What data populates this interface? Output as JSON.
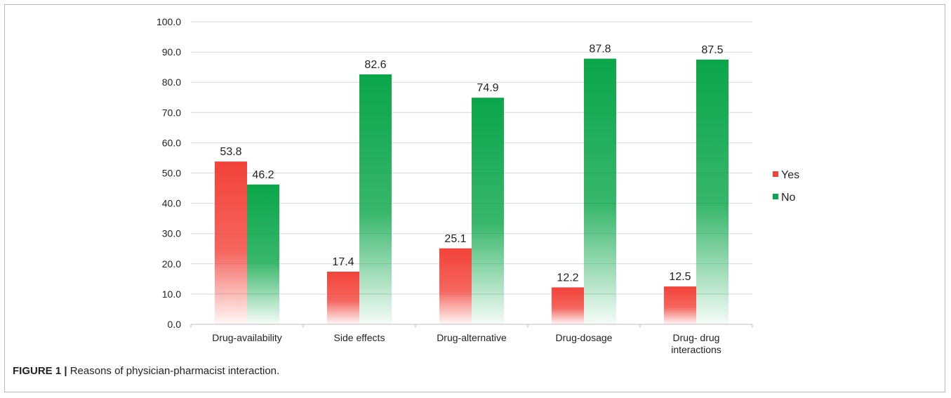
{
  "caption": {
    "label": "FIGURE 1 |",
    "text": "Reasons of physician-pharmacist interaction."
  },
  "chart_data": {
    "type": "bar",
    "categories": [
      [
        "Drug-availability"
      ],
      [
        "Side effects"
      ],
      [
        "Drug-alternative"
      ],
      [
        "Drug-dosage"
      ],
      [
        "Drug- drug",
        "interactions"
      ]
    ],
    "series": [
      {
        "name": "Yes",
        "values": [
          53.8,
          17.4,
          25.1,
          12.2,
          12.5
        ],
        "color": "#f2433a"
      },
      {
        "name": "No",
        "values": [
          46.2,
          82.6,
          74.9,
          87.8,
          87.5
        ],
        "color": "#0ba64a"
      }
    ],
    "ylim": [
      0,
      100
    ],
    "yticks": [
      "0.0",
      "10.0",
      "20.0",
      "30.0",
      "40.0",
      "50.0",
      "60.0",
      "70.0",
      "80.0",
      "90.0",
      "100.0"
    ],
    "grid": true,
    "legend_position": "right",
    "data_labels": true,
    "gridline_color": "#d6d6d6",
    "axis_color": "#bfbfbf"
  }
}
